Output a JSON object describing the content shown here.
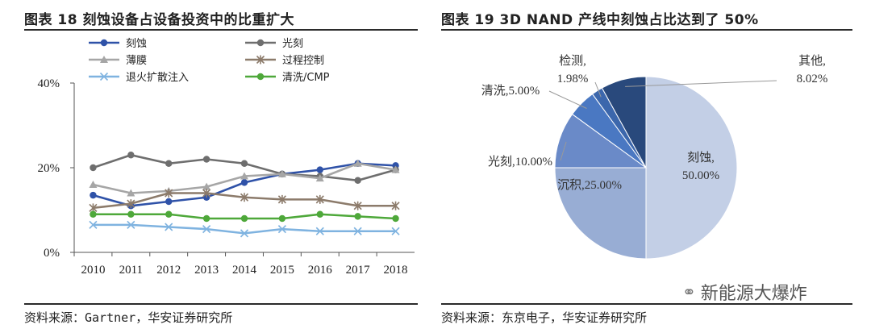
{
  "left_panel": {
    "title": "图表 18 刻蚀设备占设备投资中的比重扩大",
    "source": "资料来源：Gartner，华安证券研究所"
  },
  "right_panel": {
    "title": "图表 19 3D NAND 产线中刻蚀占比达到了 50%",
    "source": "资料来源：东京电子，华安证券研究所"
  },
  "watermark": {
    "text": "新能源大爆炸",
    "icon": "wechat-icon"
  },
  "chart_data": [
    {
      "type": "line",
      "title": "图表 18 刻蚀设备占设备投资中的比重扩大",
      "x": [
        "2010",
        "2011",
        "2012",
        "2013",
        "2014",
        "2015",
        "2016",
        "2017",
        "2018"
      ],
      "y_ticks": [
        "0%",
        "20%",
        "40%"
      ],
      "ylim": [
        0,
        40
      ],
      "grid": false,
      "legend_position": "top-left",
      "series": [
        {
          "name": "刻蚀",
          "color": "#2f52a8",
          "marker": "circle",
          "values": [
            13.5,
            11,
            12,
            13,
            16.5,
            18.5,
            19.5,
            21,
            20.5
          ]
        },
        {
          "name": "光刻",
          "color": "#6e6e6e",
          "marker": "circle",
          "values": [
            20,
            23,
            21,
            22,
            21,
            18.5,
            18,
            17,
            19.5
          ]
        },
        {
          "name": "薄膜",
          "color": "#a6a6a6",
          "marker": "triangle",
          "values": [
            16,
            14,
            14.5,
            15.5,
            18,
            18.5,
            17.5,
            21,
            19.5
          ]
        },
        {
          "name": "过程控制",
          "color": "#8c7b6b",
          "marker": "star",
          "values": [
            10.5,
            11.5,
            14,
            14,
            13,
            12.5,
            12.5,
            11,
            11
          ]
        },
        {
          "name": "退火扩散注入",
          "color": "#7fb3e0",
          "marker": "x",
          "values": [
            6.5,
            6.5,
            6,
            5.5,
            4.5,
            5.5,
            5,
            5,
            5
          ]
        },
        {
          "name": "清洗/CMP",
          "color": "#4ea83a",
          "marker": "circle",
          "values": [
            9,
            9,
            9,
            8,
            8,
            8,
            9,
            8.5,
            8
          ]
        }
      ]
    },
    {
      "type": "pie",
      "title": "图表 19 3D NAND 产线中刻蚀占比达到了 50%",
      "slices": [
        {
          "name": "刻蚀",
          "value": 50.0,
          "label": "50.00%",
          "color": "#c3cfe6"
        },
        {
          "name": "沉积",
          "value": 25.0,
          "label": "25.00%",
          "color": "#98add4"
        },
        {
          "name": "光刻",
          "value": 10.0,
          "label": "10.00%",
          "color": "#6a8ac8"
        },
        {
          "name": "清洗",
          "value": 5.0,
          "label": "5.00%",
          "color": "#4a78c2"
        },
        {
          "name": "检测",
          "value": 1.98,
          "label": "1.98%",
          "color": "#3c67ac"
        },
        {
          "name": "其他",
          "value": 8.02,
          "label": "8.02%",
          "color": "#29497c"
        }
      ]
    }
  ]
}
